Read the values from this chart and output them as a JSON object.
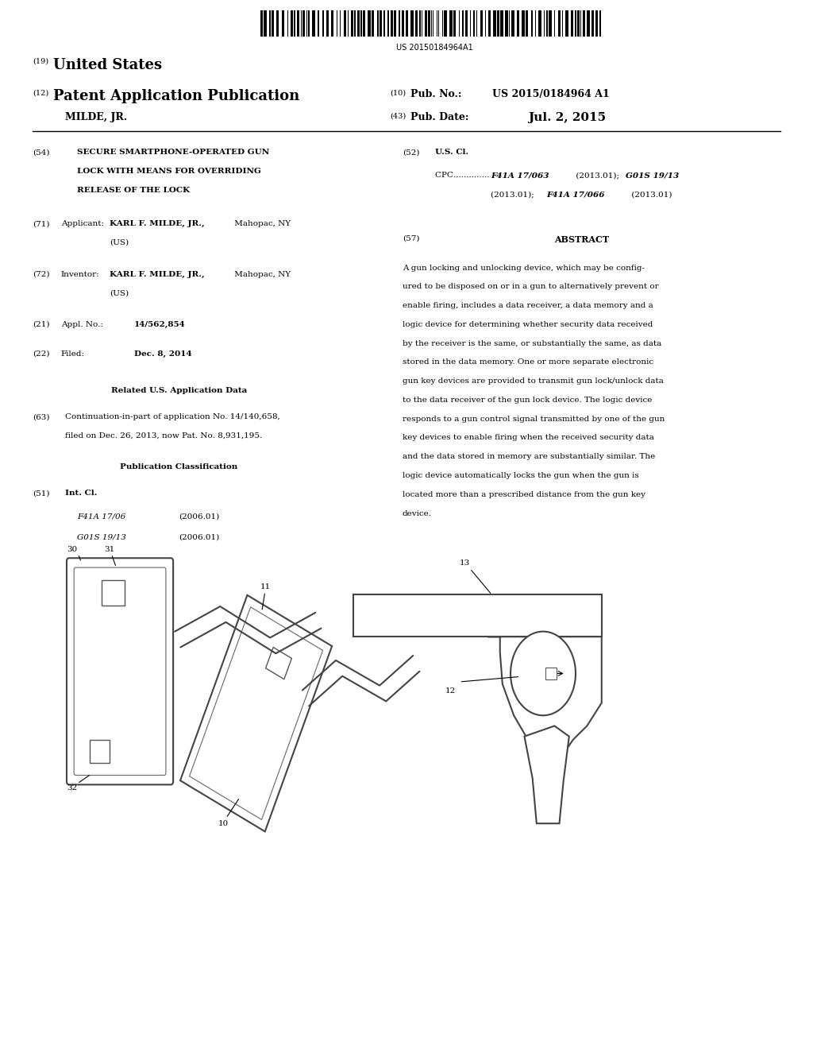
{
  "bg_color": "#ffffff",
  "barcode_text": "US 20150184964A1",
  "header": {
    "country_num": "(19)",
    "country": "United States",
    "type_num": "(12)",
    "type": "Patent Application Publication",
    "pub_num_label_num": "(10)",
    "pub_num_label": "Pub. No.:",
    "pub_num": "US 2015/0184964 A1",
    "name": "MILDE, JR.",
    "date_num_label": "(43)",
    "date_label": "Pub. Date:",
    "date": "Jul. 2, 2015"
  },
  "int_cl_entries": [
    {
      "code": "F41A 17/06",
      "year": "(2006.01)"
    },
    {
      "code": "G01S 19/13",
      "year": "(2006.01)"
    }
  ],
  "abstract_text": "A gun locking and unlocking device, which may be config-\nured to be disposed on or in a gun to alternatively prevent or\nenable firing, includes a data receiver, a data memory and a\nlogic device for determining whether security data received\nby the receiver is the same, or substantially the same, as data\nstored in the data memory. One or more separate electronic\ngun key devices are provided to transmit gun lock/unlock data\nto the data receiver of the gun lock device. The logic device\nresponds to a gun control signal transmitted by one of the gun\nkey devices to enable firing when the received security data\nand the data stored in memory are substantially similar. The\nlogic device automatically locks the gun when the gun is\nlocated more than a prescribed distance from the gun key\ndevice."
}
